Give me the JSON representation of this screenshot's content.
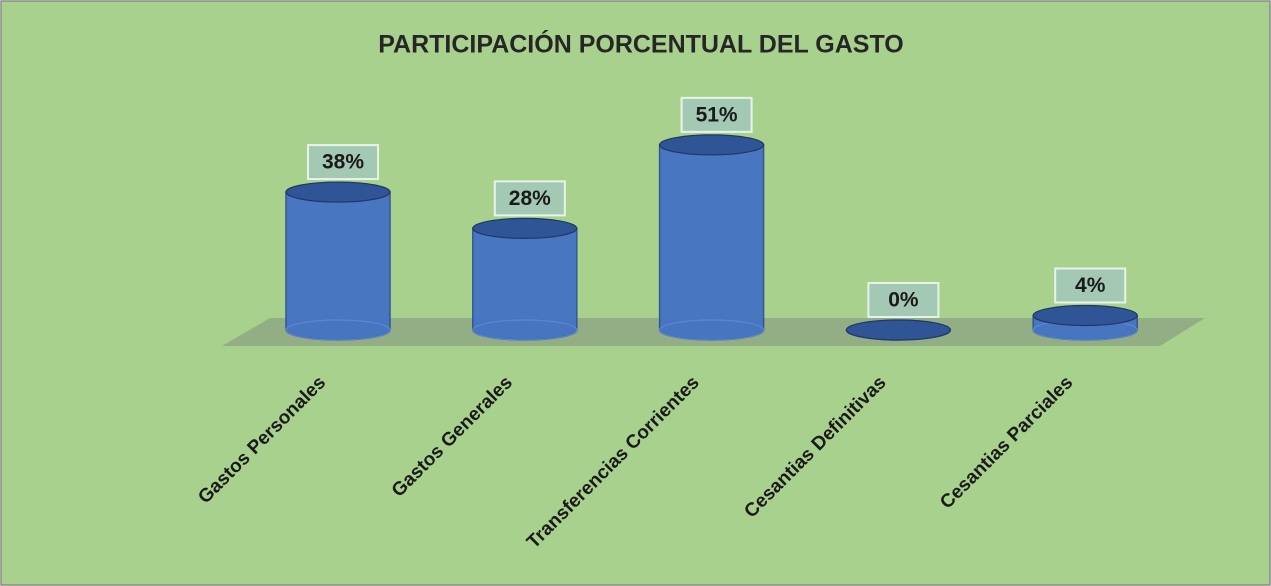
{
  "chart_data": {
    "type": "bar3d",
    "title": "PARTICIPACIÓN PORCENTUAL DEL  GASTO",
    "categories": [
      "Gastos Personales",
      "Gastos Generales",
      "Transferencias Corrientes",
      "Cesantias Definitivas",
      "Cesantias Parciales"
    ],
    "values": [
      38,
      28,
      51,
      0,
      4
    ],
    "value_labels": [
      "38%",
      "28%",
      "51%",
      "0%",
      "4%"
    ],
    "color": "#4472c4"
  }
}
